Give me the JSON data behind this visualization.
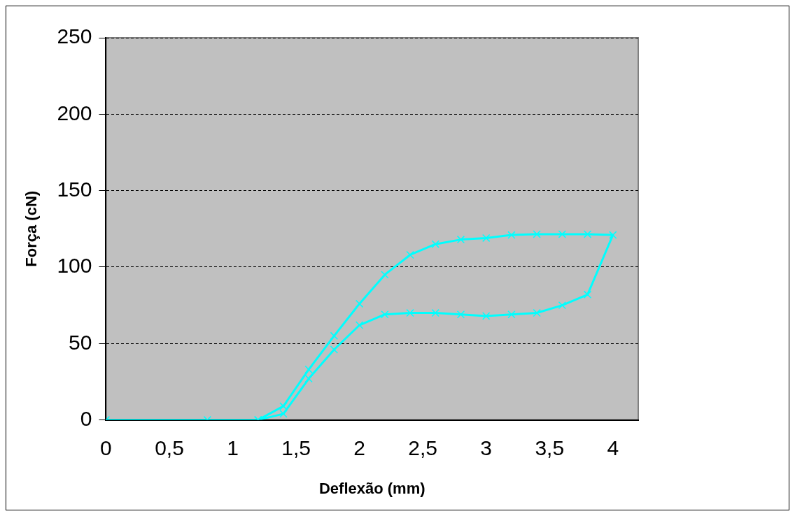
{
  "chart_data": {
    "type": "line",
    "xlabel": "Deflexão (mm)",
    "ylabel": "Força (cN)",
    "xlim": [
      0,
      4.2
    ],
    "xticks": [
      0,
      {
        "value": 0.5,
        "label": "0,5"
      },
      1,
      {
        "value": 1.5,
        "label": "1,5"
      },
      2,
      {
        "value": 2.5,
        "label": "2,5"
      },
      3,
      {
        "value": 3.5,
        "label": "3,5"
      },
      4
    ],
    "ylim": [
      0,
      250
    ],
    "yticks": [
      0,
      50,
      100,
      150,
      200,
      250
    ],
    "grid": "y",
    "legend": false,
    "marker": "cross",
    "line_style": "solid",
    "series": [
      {
        "color": "#00ffff",
        "x": [
          0,
          0.8,
          1.2,
          1.4,
          1.6,
          1.8,
          2.0,
          2.2,
          2.4,
          2.6,
          2.8,
          3.0,
          3.2,
          3.4,
          3.6,
          3.8,
          4.0,
          3.8,
          3.6,
          3.4,
          3.2,
          3.0,
          2.8,
          2.6,
          2.4,
          2.2,
          2.0,
          1.8,
          1.6,
          1.4,
          1.2
        ],
        "values": [
          0,
          0,
          0,
          9,
          33,
          55,
          76,
          95,
          108,
          115,
          118,
          119,
          121,
          121.5,
          121.5,
          121.5,
          121,
          82,
          75,
          70,
          69,
          68,
          69,
          70,
          70,
          69,
          62,
          46,
          27,
          4,
          0
        ]
      }
    ]
  }
}
